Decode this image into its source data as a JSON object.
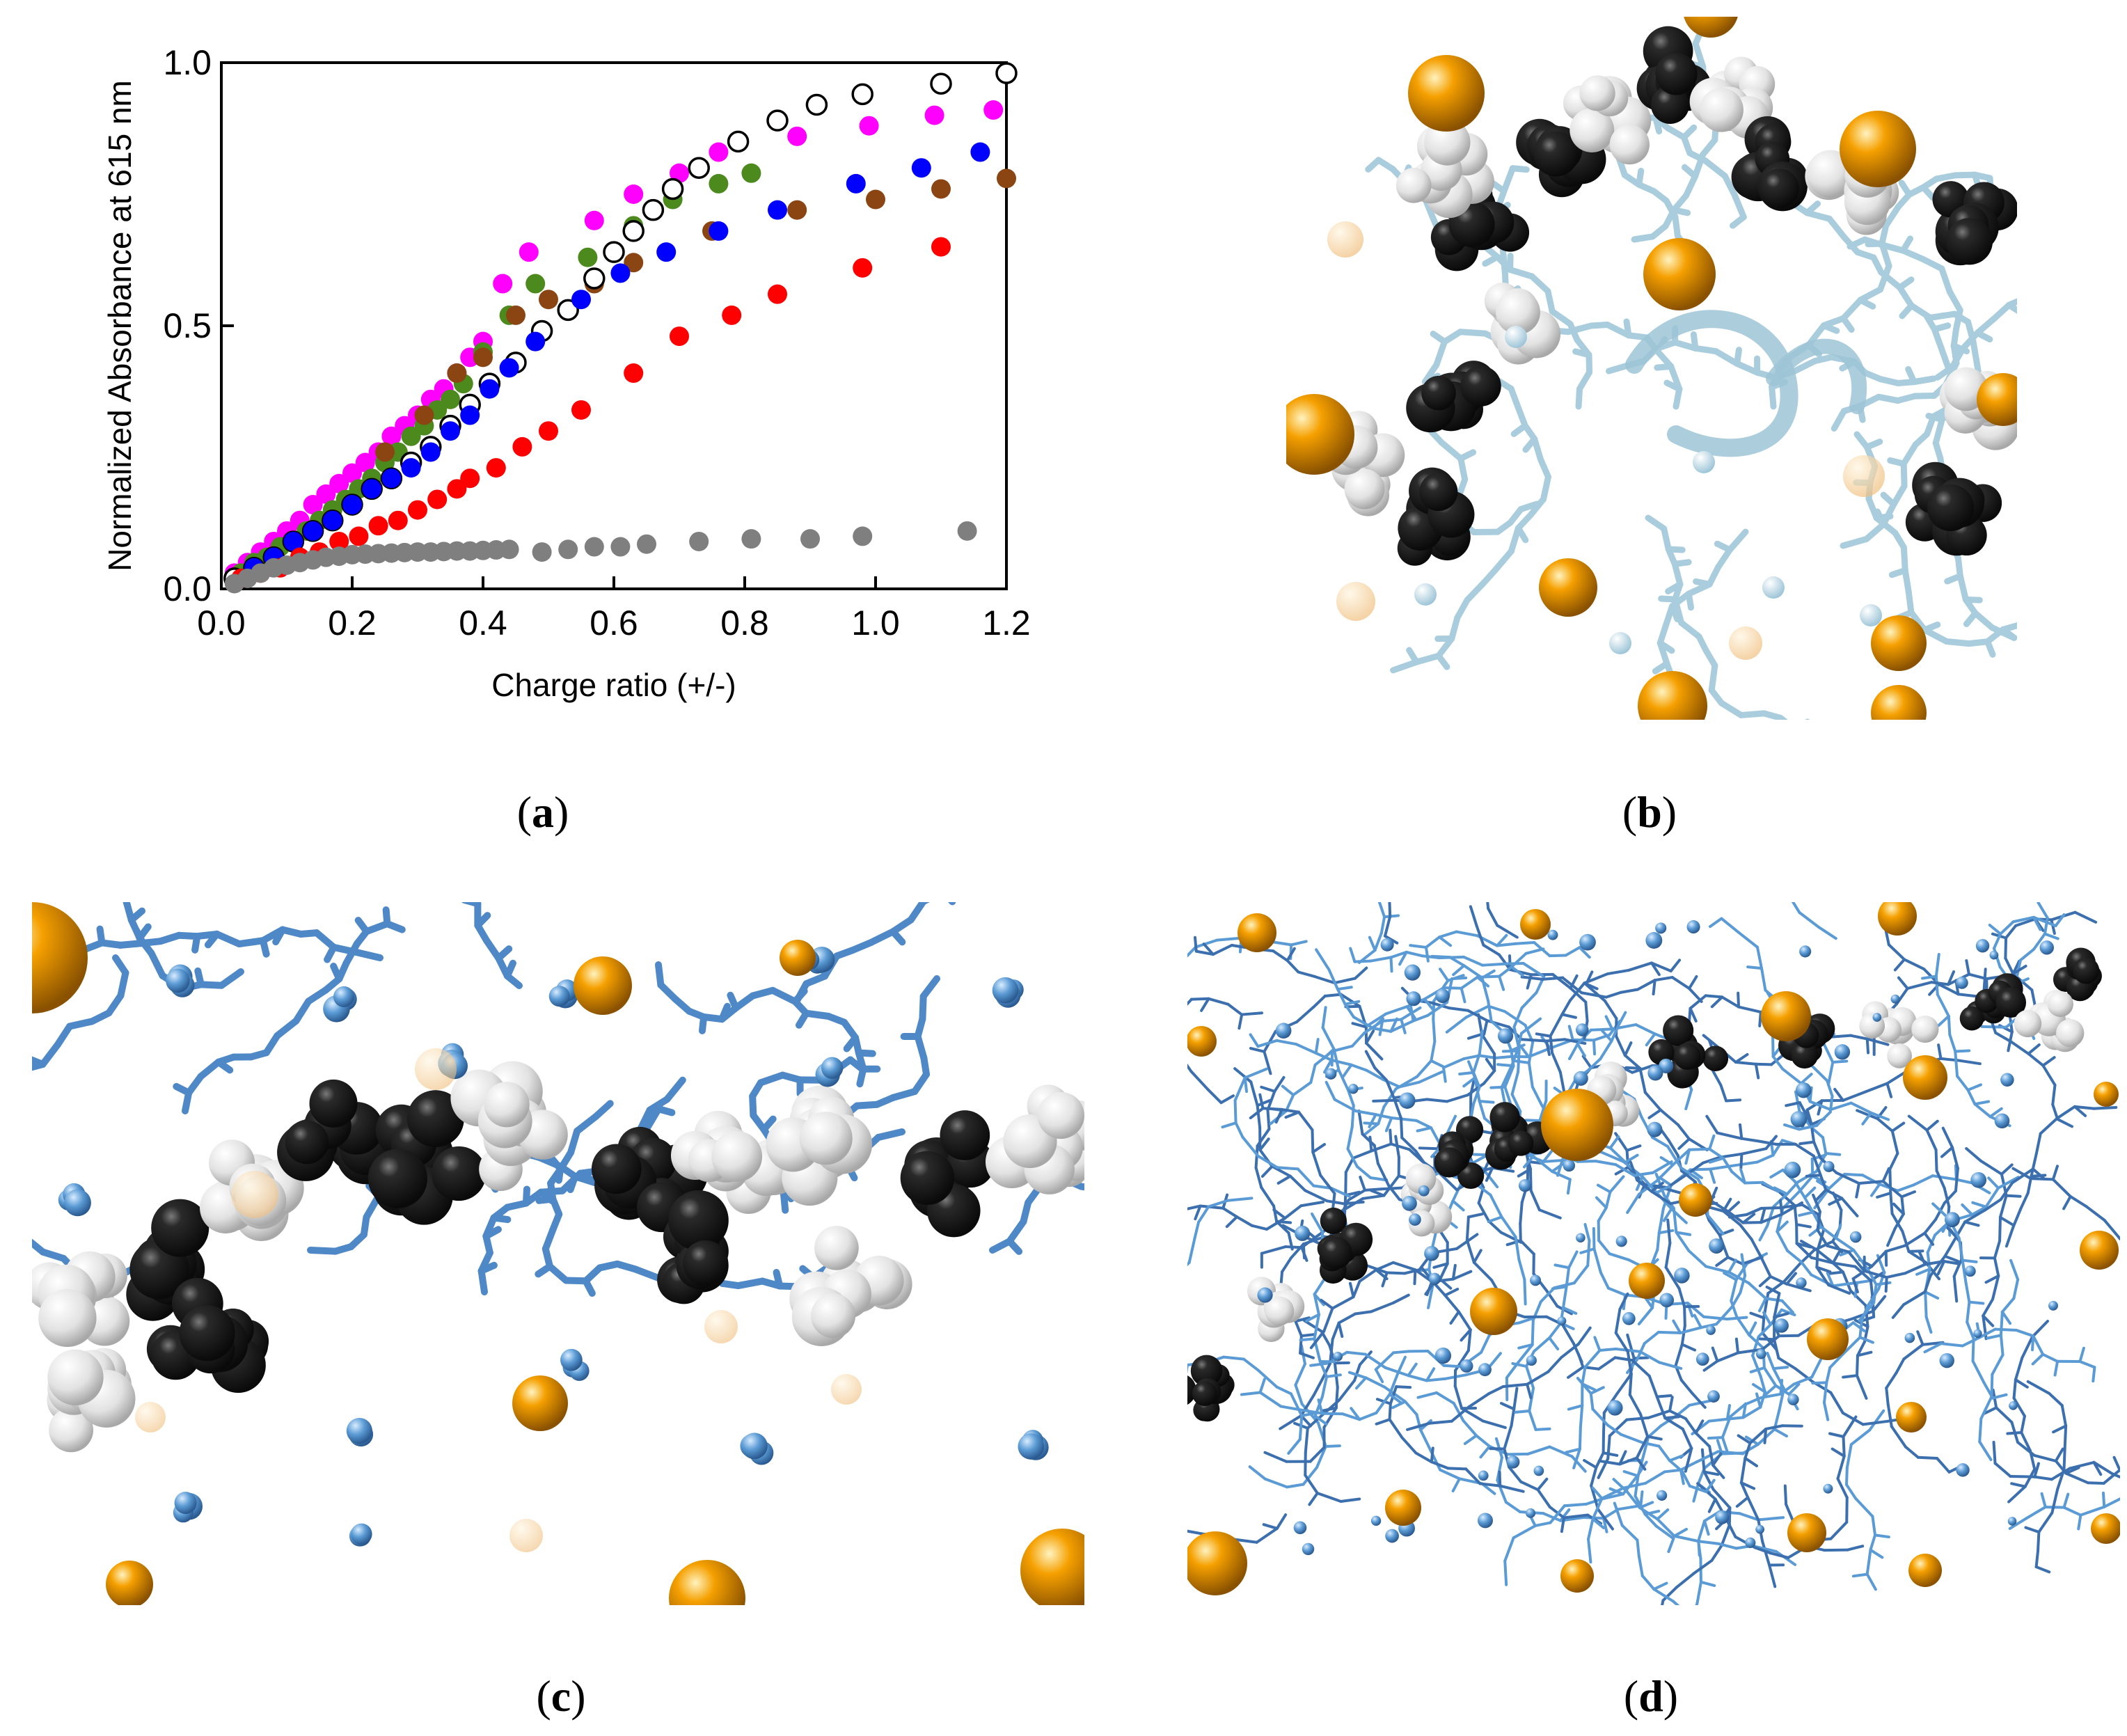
{
  "captions": {
    "a": "a",
    "b": "b",
    "c": "c",
    "d": "d"
  },
  "colors": {
    "magenta": "#ff00ff",
    "green": "#4c8a1e",
    "brown": "#8b4513",
    "black_open": "#000000",
    "blue": "#0000ff",
    "red": "#ff0000",
    "gray": "#7f7f7f",
    "orange_ion": "#f5a000",
    "dark_monomer": "#1e1e1e",
    "light_monomer": "#e6e6e6",
    "ligand_pale": "#b8d8e8",
    "ligand_blue": "#5b9bd5"
  },
  "chart_data": {
    "type": "scatter",
    "xlabel": "Charge ratio (+/-)",
    "ylabel": "Normalized Absorbance at 615 nm",
    "xlim": [
      0.0,
      1.2
    ],
    "ylim": [
      0.0,
      1.0
    ],
    "xticks": [
      "0.0",
      "0.2",
      "0.4",
      "0.6",
      "0.8",
      "1.0",
      "1.2"
    ],
    "yticks": [
      "0.0",
      "0.5",
      "1.0"
    ],
    "series": [
      {
        "name": "magenta",
        "color": "#ff00ff",
        "filled": true,
        "points": [
          [
            0.02,
            0.03
          ],
          [
            0.04,
            0.05
          ],
          [
            0.06,
            0.07
          ],
          [
            0.08,
            0.09
          ],
          [
            0.1,
            0.11
          ],
          [
            0.12,
            0.13
          ],
          [
            0.14,
            0.16
          ],
          [
            0.16,
            0.18
          ],
          [
            0.18,
            0.2
          ],
          [
            0.2,
            0.22
          ],
          [
            0.22,
            0.24
          ],
          [
            0.24,
            0.26
          ],
          [
            0.26,
            0.29
          ],
          [
            0.28,
            0.31
          ],
          [
            0.3,
            0.33
          ],
          [
            0.32,
            0.36
          ],
          [
            0.34,
            0.38
          ],
          [
            0.36,
            0.41
          ],
          [
            0.38,
            0.44
          ],
          [
            0.4,
            0.47
          ],
          [
            0.43,
            0.58
          ],
          [
            0.47,
            0.64
          ],
          [
            0.57,
            0.7
          ],
          [
            0.63,
            0.75
          ],
          [
            0.7,
            0.79
          ],
          [
            0.76,
            0.83
          ],
          [
            0.88,
            0.86
          ],
          [
            0.99,
            0.88
          ],
          [
            1.09,
            0.9
          ],
          [
            1.18,
            0.91
          ]
        ]
      },
      {
        "name": "green",
        "color": "#4c8a1e",
        "filled": true,
        "points": [
          [
            0.03,
            0.03
          ],
          [
            0.05,
            0.05
          ],
          [
            0.07,
            0.06
          ],
          [
            0.09,
            0.08
          ],
          [
            0.11,
            0.09
          ],
          [
            0.13,
            0.11
          ],
          [
            0.15,
            0.13
          ],
          [
            0.17,
            0.15
          ],
          [
            0.19,
            0.17
          ],
          [
            0.21,
            0.19
          ],
          [
            0.23,
            0.21
          ],
          [
            0.25,
            0.24
          ],
          [
            0.27,
            0.26
          ],
          [
            0.29,
            0.29
          ],
          [
            0.31,
            0.31
          ],
          [
            0.33,
            0.34
          ],
          [
            0.35,
            0.36
          ],
          [
            0.37,
            0.39
          ],
          [
            0.4,
            0.45
          ],
          [
            0.44,
            0.52
          ],
          [
            0.48,
            0.58
          ],
          [
            0.56,
            0.63
          ],
          [
            0.63,
            0.69
          ],
          [
            0.69,
            0.74
          ],
          [
            0.76,
            0.77
          ],
          [
            0.81,
            0.79
          ]
        ]
      },
      {
        "name": "brown",
        "color": "#8b4513",
        "filled": true,
        "points": [
          [
            0.25,
            0.26
          ],
          [
            0.31,
            0.33
          ],
          [
            0.36,
            0.41
          ],
          [
            0.4,
            0.44
          ],
          [
            0.45,
            0.52
          ],
          [
            0.5,
            0.55
          ],
          [
            0.57,
            0.58
          ],
          [
            0.63,
            0.62
          ],
          [
            0.75,
            0.68
          ],
          [
            0.88,
            0.72
          ],
          [
            1.0,
            0.74
          ],
          [
            1.1,
            0.76
          ],
          [
            1.2,
            0.78
          ]
        ]
      },
      {
        "name": "open-black",
        "color": "#000000",
        "filled": false,
        "points": [
          [
            0.02,
            0.02
          ],
          [
            0.05,
            0.04
          ],
          [
            0.08,
            0.06
          ],
          [
            0.11,
            0.09
          ],
          [
            0.14,
            0.11
          ],
          [
            0.17,
            0.13
          ],
          [
            0.2,
            0.16
          ],
          [
            0.23,
            0.19
          ],
          [
            0.26,
            0.21
          ],
          [
            0.29,
            0.24
          ],
          [
            0.32,
            0.27
          ],
          [
            0.35,
            0.31
          ],
          [
            0.38,
            0.35
          ],
          [
            0.41,
            0.39
          ],
          [
            0.45,
            0.43
          ],
          [
            0.49,
            0.49
          ],
          [
            0.53,
            0.53
          ],
          [
            0.57,
            0.59
          ],
          [
            0.6,
            0.64
          ],
          [
            0.63,
            0.68
          ],
          [
            0.66,
            0.72
          ],
          [
            0.69,
            0.76
          ],
          [
            0.73,
            0.8
          ],
          [
            0.79,
            0.85
          ],
          [
            0.85,
            0.89
          ],
          [
            0.91,
            0.92
          ],
          [
            0.98,
            0.94
          ],
          [
            1.1,
            0.96
          ],
          [
            1.2,
            0.98
          ]
        ]
      },
      {
        "name": "blue",
        "color": "#0000ff",
        "filled": true,
        "points": [
          [
            0.05,
            0.04
          ],
          [
            0.08,
            0.06
          ],
          [
            0.11,
            0.09
          ],
          [
            0.14,
            0.11
          ],
          [
            0.17,
            0.13
          ],
          [
            0.2,
            0.16
          ],
          [
            0.23,
            0.19
          ],
          [
            0.26,
            0.21
          ],
          [
            0.29,
            0.23
          ],
          [
            0.32,
            0.26
          ],
          [
            0.35,
            0.3
          ],
          [
            0.38,
            0.33
          ],
          [
            0.41,
            0.38
          ],
          [
            0.44,
            0.42
          ],
          [
            0.48,
            0.47
          ],
          [
            0.55,
            0.55
          ],
          [
            0.61,
            0.6
          ],
          [
            0.68,
            0.64
          ],
          [
            0.76,
            0.68
          ],
          [
            0.85,
            0.72
          ],
          [
            0.97,
            0.77
          ],
          [
            1.07,
            0.8
          ],
          [
            1.16,
            0.83
          ]
        ]
      },
      {
        "name": "red",
        "color": "#ff0000",
        "filled": true,
        "points": [
          [
            0.03,
            0.02
          ],
          [
            0.06,
            0.03
          ],
          [
            0.09,
            0.04
          ],
          [
            0.12,
            0.06
          ],
          [
            0.15,
            0.07
          ],
          [
            0.18,
            0.09
          ],
          [
            0.21,
            0.1
          ],
          [
            0.24,
            0.12
          ],
          [
            0.27,
            0.13
          ],
          [
            0.3,
            0.15
          ],
          [
            0.33,
            0.17
          ],
          [
            0.36,
            0.19
          ],
          [
            0.38,
            0.21
          ],
          [
            0.42,
            0.23
          ],
          [
            0.46,
            0.27
          ],
          [
            0.5,
            0.3
          ],
          [
            0.55,
            0.34
          ],
          [
            0.63,
            0.41
          ],
          [
            0.7,
            0.48
          ],
          [
            0.78,
            0.52
          ],
          [
            0.85,
            0.56
          ],
          [
            0.98,
            0.61
          ],
          [
            1.1,
            0.65
          ]
        ]
      },
      {
        "name": "gray",
        "color": "#7f7f7f",
        "filled": true,
        "points": [
          [
            0.02,
            0.01
          ],
          [
            0.04,
            0.02
          ],
          [
            0.06,
            0.03
          ],
          [
            0.08,
            0.04
          ],
          [
            0.1,
            0.045
          ],
          [
            0.12,
            0.05
          ],
          [
            0.14,
            0.055
          ],
          [
            0.16,
            0.06
          ],
          [
            0.18,
            0.062
          ],
          [
            0.2,
            0.065
          ],
          [
            0.22,
            0.066
          ],
          [
            0.24,
            0.067
          ],
          [
            0.26,
            0.068
          ],
          [
            0.28,
            0.069
          ],
          [
            0.3,
            0.07
          ],
          [
            0.32,
            0.07
          ],
          [
            0.34,
            0.071
          ],
          [
            0.36,
            0.072
          ],
          [
            0.38,
            0.072
          ],
          [
            0.4,
            0.073
          ],
          [
            0.42,
            0.074
          ],
          [
            0.44,
            0.075
          ],
          [
            0.49,
            0.07
          ],
          [
            0.53,
            0.075
          ],
          [
            0.57,
            0.08
          ],
          [
            0.61,
            0.08
          ],
          [
            0.65,
            0.085
          ],
          [
            0.73,
            0.09
          ],
          [
            0.81,
            0.095
          ],
          [
            0.9,
            0.095
          ],
          [
            0.98,
            0.1
          ],
          [
            1.14,
            0.11
          ]
        ]
      }
    ]
  }
}
